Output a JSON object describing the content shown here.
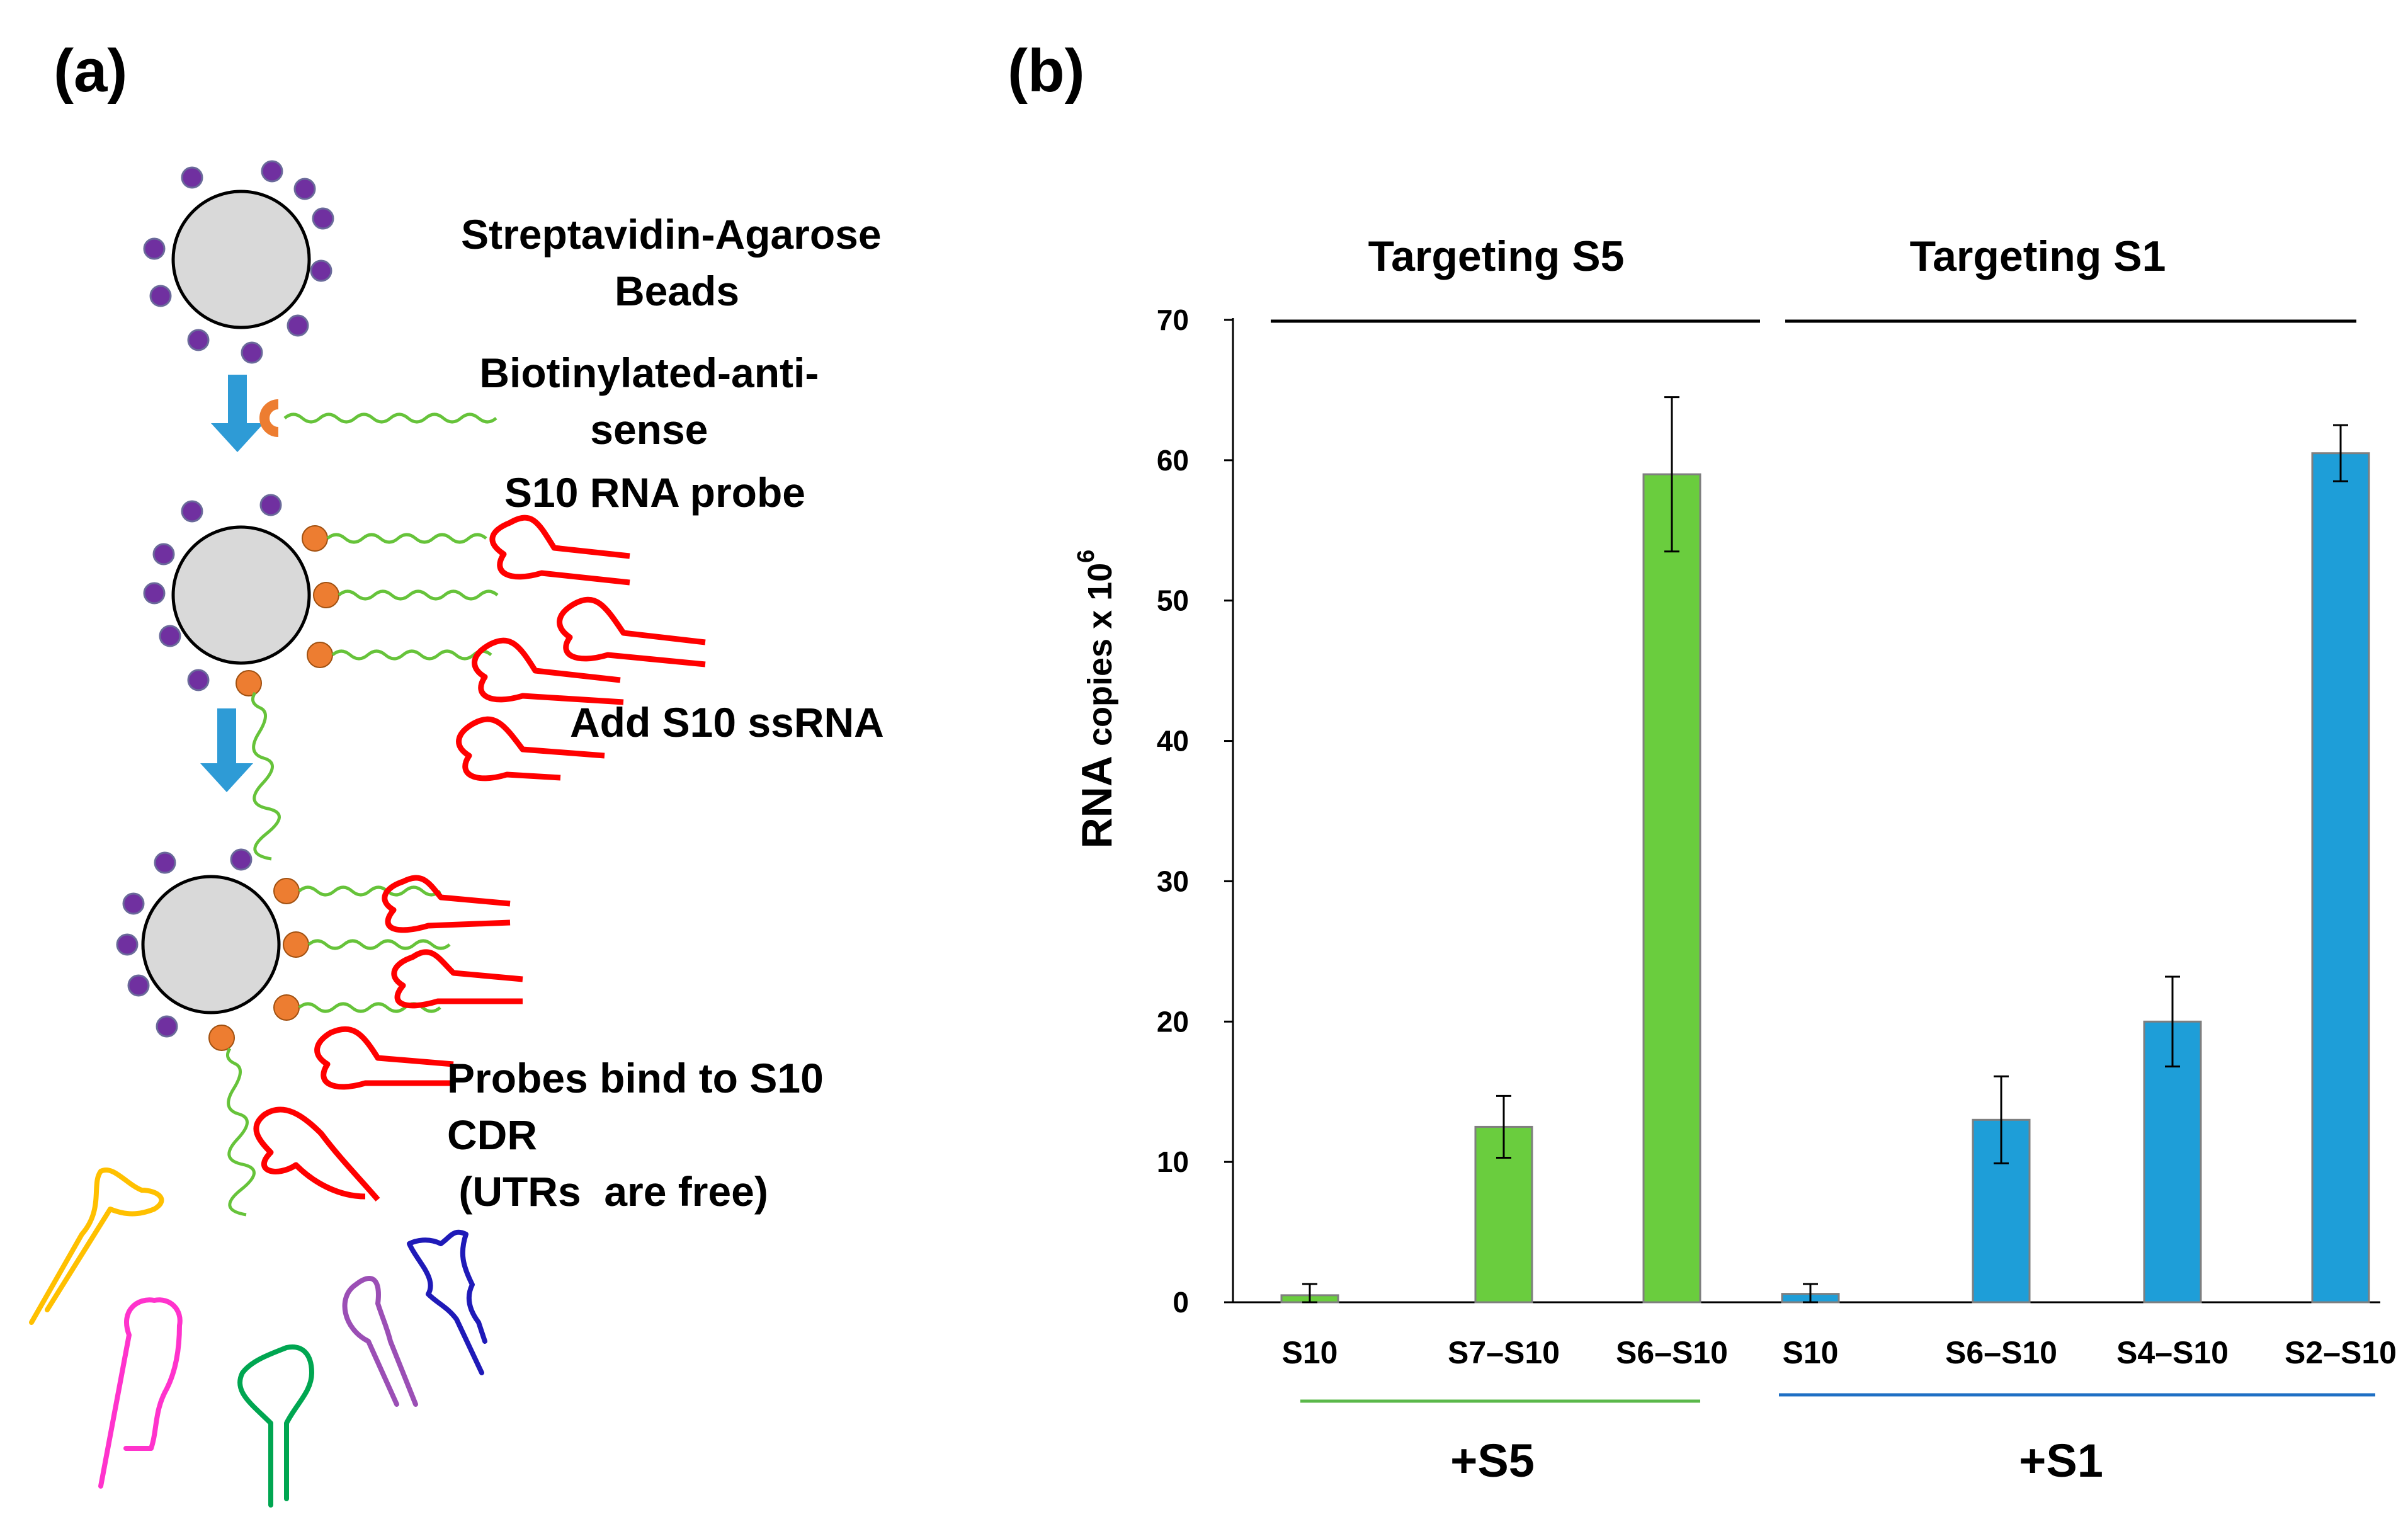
{
  "panel_a": {
    "label": "(a)",
    "texts": {
      "beads": [
        "Streptavidin-Agarose",
        "Beads"
      ],
      "probe": [
        "Biotinylated-anti-",
        "sense",
        "S10 RNA probe"
      ],
      "add": [
        "Add S10 ssRNA"
      ],
      "bind": [
        "Probes bind to S10",
        "CDR",
        " (UTRs  are free)"
      ]
    },
    "colors": {
      "bead_fill": "#d9d9d9",
      "streptavidin": "#7030a0",
      "biotin": "#ed7d31",
      "probe_strand": "#66c33a",
      "rna": "#ff0000",
      "arrow": "#2e9bd6",
      "free_rnas": [
        "#ffc000",
        "#ff33cc",
        "#00a651",
        "#9b4fb5",
        "#1f1ab8"
      ]
    }
  },
  "panel_b": {
    "label": "(b)"
  },
  "chart_data": {
    "type": "bar",
    "ylabel": "RNA copies x 10⁶",
    "ylabel_main": "RNA",
    "ylabel_rest": " copies x 10",
    "ylabel_exp": "6",
    "ylim": [
      0,
      70
    ],
    "yticks": [
      "0",
      "10",
      "20",
      "30",
      "40",
      "50",
      "60",
      "70"
    ],
    "categories": [
      "S10",
      "S7–S10",
      "S6–S10",
      "S10",
      "S6–S10",
      "S4–S10",
      "S2–S10"
    ],
    "values": [
      0.5,
      12.5,
      59,
      0.6,
      13,
      20,
      60.5
    ],
    "errors": [
      0.8,
      2.2,
      5.5,
      0.7,
      3.1,
      3.2,
      2.0
    ],
    "bar_colors": [
      "#6acd3e",
      "#6acd3e",
      "#6acd3e",
      "#1e9ed8",
      "#1e9ed8",
      "#1e9ed8",
      "#1e9ed8"
    ],
    "groups": [
      {
        "title": "Targeting S5",
        "label": "+S5",
        "line_color": "#5bb84a",
        "bars": [
          0,
          1,
          2
        ]
      },
      {
        "title": "Targeting S1",
        "label": "+S1",
        "line_color": "#1e6fc4",
        "bars": [
          3,
          4,
          5,
          6
        ]
      }
    ]
  }
}
